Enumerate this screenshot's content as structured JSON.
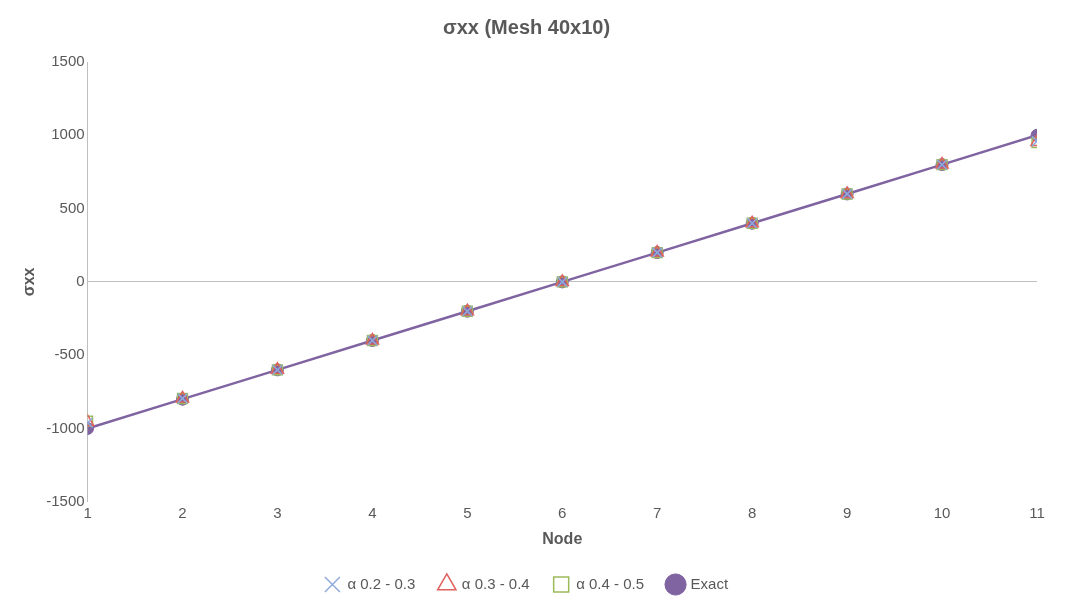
{
  "chart_data": {
    "type": "line",
    "title": "σxx (Mesh 40x10)",
    "x_label": "Node",
    "y_label": "σxx",
    "x": [
      1,
      2,
      3,
      4,
      5,
      6,
      7,
      8,
      9,
      10,
      11
    ],
    "xlim": [
      1,
      11
    ],
    "xticks": [
      1,
      2,
      3,
      4,
      5,
      6,
      7,
      8,
      9,
      10,
      11
    ],
    "ylim": [
      -1500,
      1500
    ],
    "yticks": [
      -1500,
      -1000,
      -500,
      0,
      500,
      1000,
      1500
    ],
    "grid": false,
    "legend": "bottom",
    "series": [
      {
        "name": "α 0.2 - 0.3",
        "type": "scatter",
        "marker": "cross",
        "color": "#8faadc",
        "values": [
          -960,
          -795,
          -600,
          -400,
          -200,
          0,
          200,
          400,
          600,
          800,
          960
        ]
      },
      {
        "name": "α 0.3 - 0.4",
        "type": "scatter",
        "marker": "triangle",
        "color": "#e0605c",
        "values": [
          -955,
          -795,
          -600,
          -400,
          -200,
          0,
          200,
          400,
          600,
          800,
          955
        ]
      },
      {
        "name": "α 0.4 - 0.5",
        "type": "scatter",
        "marker": "square",
        "color": "#9bbb59",
        "values": [
          -950,
          -795,
          -600,
          -400,
          -200,
          0,
          200,
          400,
          600,
          800,
          950
        ]
      },
      {
        "name": "Exact",
        "type": "line",
        "marker": "circle",
        "color": "#8064a2",
        "values": [
          -1000,
          -800,
          -600,
          -400,
          -200,
          0,
          200,
          400,
          600,
          800,
          1000
        ]
      }
    ]
  }
}
